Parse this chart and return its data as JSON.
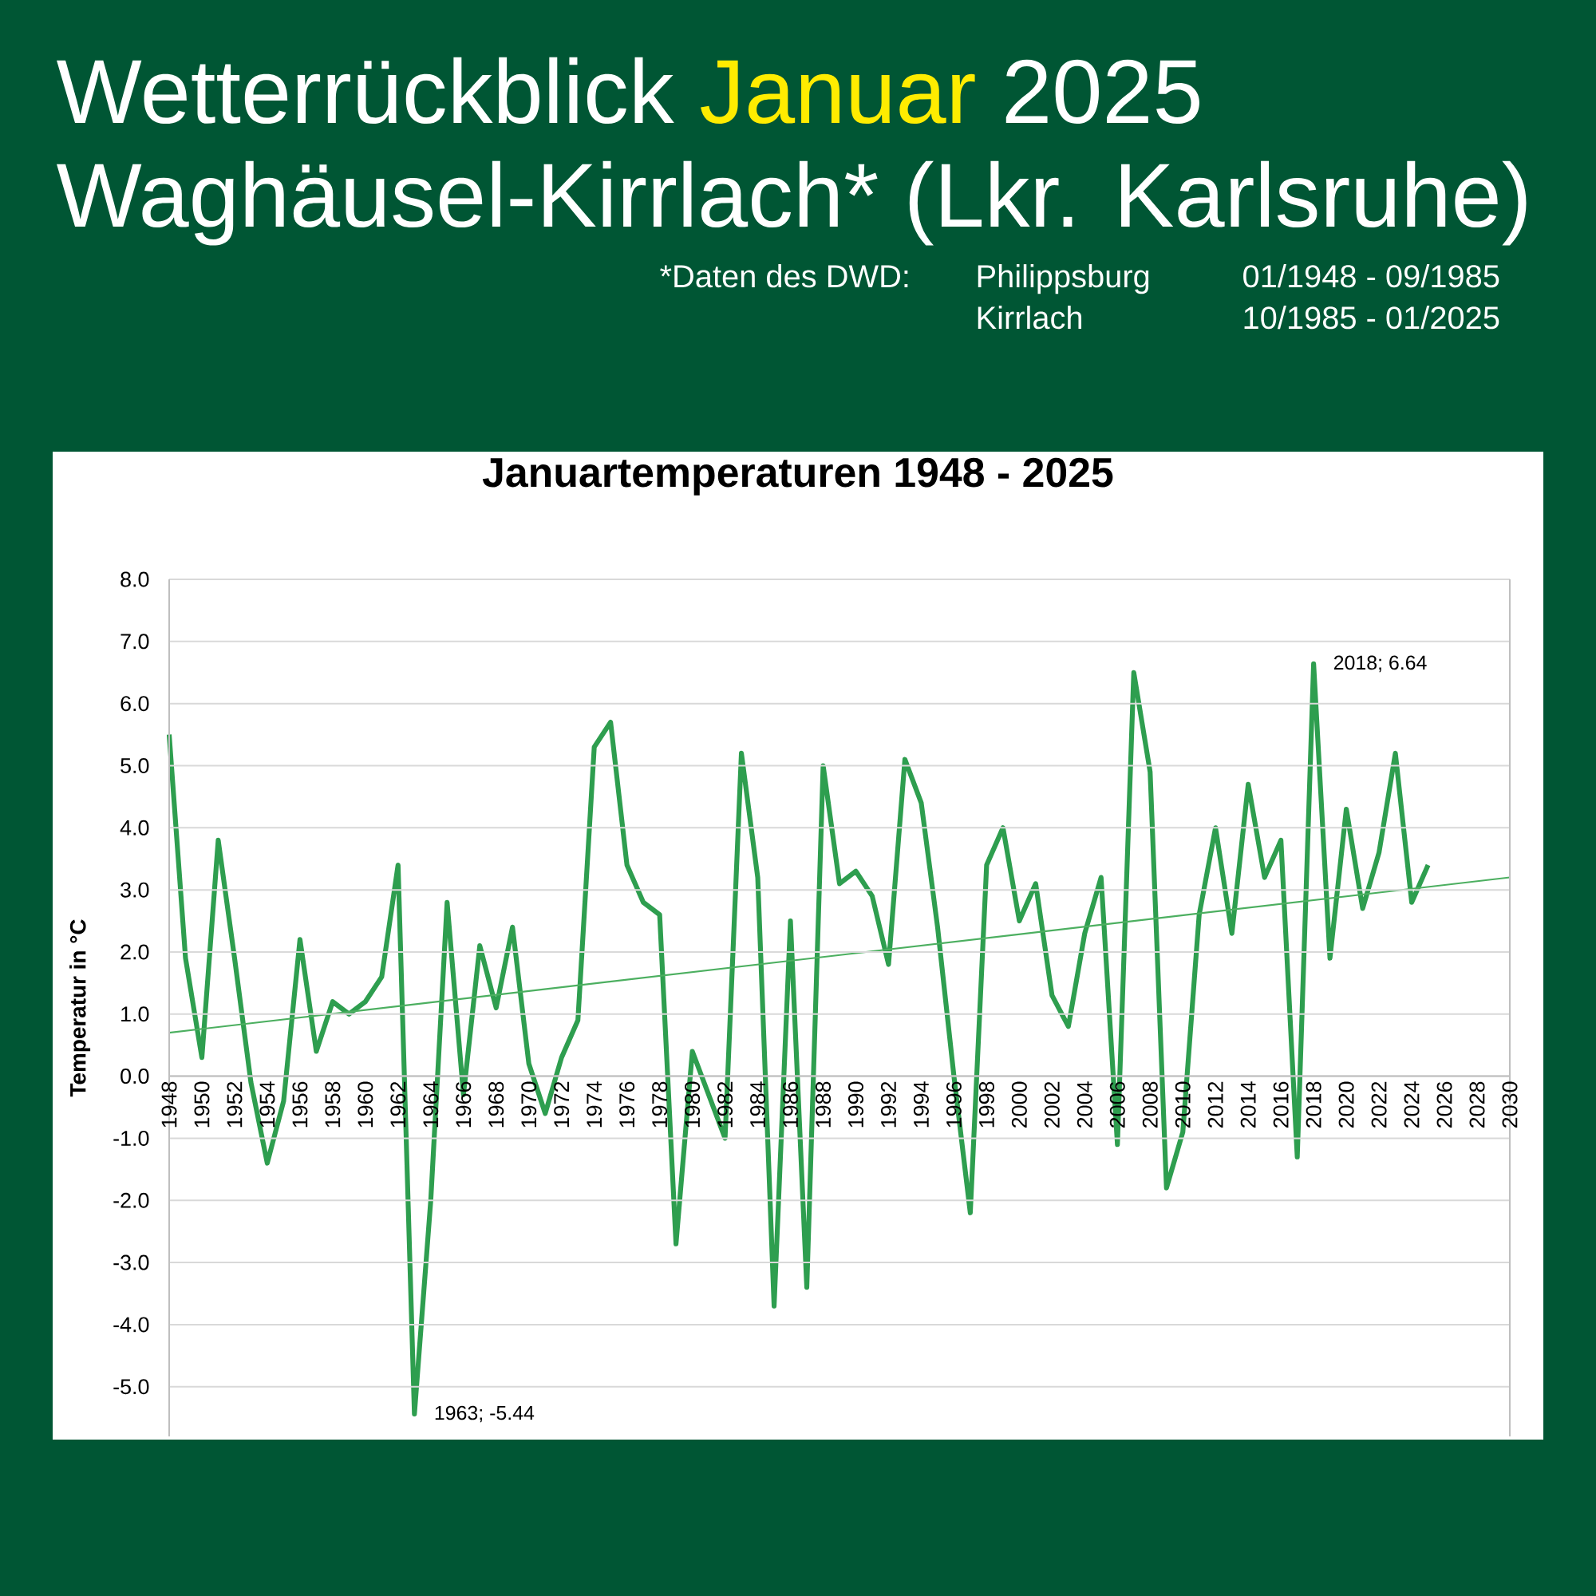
{
  "chart_data": {
    "type": "line",
    "title": "Januartemperaturen 1948 - 2025",
    "ylabel": "Temperatur in °C",
    "annotations": [
      "Wetterrückblick",
      "Januar",
      "2025",
      "Waghäusel-Kirrlach* (Lkr. Karlsruhe)",
      "*Daten des DWD:",
      "Philippsburg",
      "01/1948 - 09/1985",
      "Kirrlach",
      "10/1985 - 01/2025",
      {
        "text": "1963; -5.44",
        "x": 1963,
        "y": -5.44
      },
      {
        "text": "2018; 6.64",
        "x": 2018,
        "y": 6.64
      }
    ],
    "x": [
      1948,
      1949,
      1950,
      1951,
      1952,
      1953,
      1954,
      1955,
      1956,
      1957,
      1958,
      1959,
      1960,
      1961,
      1962,
      1963,
      1964,
      1965,
      1966,
      1967,
      1968,
      1969,
      1970,
      1971,
      1972,
      1973,
      1974,
      1975,
      1976,
      1977,
      1978,
      1979,
      1980,
      1981,
      1982,
      1983,
      1984,
      1985,
      1986,
      1987,
      1988,
      1989,
      1990,
      1991,
      1992,
      1993,
      1994,
      1995,
      1996,
      1997,
      1998,
      1999,
      2000,
      2001,
      2002,
      2003,
      2004,
      2005,
      2006,
      2007,
      2008,
      2009,
      2010,
      2011,
      2012,
      2013,
      2014,
      2015,
      2016,
      2017,
      2018,
      2019,
      2020,
      2021,
      2022,
      2023,
      2024,
      2025
    ],
    "series": [
      {
        "color": "#2e9e4f",
        "values": [
          5.5,
          1.9,
          0.3,
          3.8,
          1.9,
          -0.1,
          -1.4,
          -0.4,
          2.2,
          0.4,
          1.2,
          1.0,
          1.2,
          1.6,
          3.4,
          -5.44,
          -2.0,
          2.8,
          -0.3,
          2.1,
          1.1,
          2.4,
          0.2,
          -0.6,
          0.3,
          0.9,
          5.3,
          5.7,
          3.4,
          2.8,
          2.6,
          -2.7,
          0.4,
          -0.3,
          -1.0,
          5.2,
          3.2,
          -3.7,
          2.5,
          -3.4,
          5.0,
          3.1,
          3.3,
          2.9,
          1.8,
          5.1,
          4.4,
          2.4,
          0.0,
          -2.2,
          3.4,
          4.0,
          2.5,
          3.1,
          1.3,
          0.8,
          2.3,
          3.2,
          -1.1,
          6.5,
          4.9,
          -1.8,
          -0.9,
          2.6,
          4.0,
          2.3,
          4.7,
          3.2,
          3.8,
          -1.3,
          6.64,
          1.9,
          4.3,
          2.7,
          3.6,
          5.2,
          2.8,
          3.4
        ]
      },
      {
        "type": "line",
        "color": "#4caf60",
        "x": [
          1948,
          2030
        ],
        "values": [
          0.7,
          3.2
        ]
      }
    ],
    "xlim": [
      1948,
      2030
    ],
    "xticks": [
      1948,
      1950,
      1952,
      1954,
      1956,
      1958,
      1960,
      1962,
      1964,
      1966,
      1968,
      1970,
      1972,
      1974,
      1976,
      1978,
      1980,
      1982,
      1984,
      1986,
      1988,
      1990,
      1992,
      1994,
      1996,
      1998,
      2000,
      2002,
      2004,
      2006,
      2008,
      2010,
      2012,
      2014,
      2016,
      2018,
      2020,
      2022,
      2024,
      2026,
      2028,
      2030
    ],
    "ylim": [
      -5.8,
      8
    ],
    "yticks": [
      {
        "value": -5,
        "label": "-5.0"
      },
      {
        "value": -4,
        "label": "-4.0"
      },
      {
        "value": -3,
        "label": "-3.0"
      },
      {
        "value": -2,
        "label": "-2.0"
      },
      {
        "value": -1,
        "label": "-1.0"
      },
      {
        "value": 0,
        "label": "0.0"
      },
      {
        "value": 1,
        "label": "1.0"
      },
      {
        "value": 2,
        "label": "2.0"
      },
      {
        "value": 3,
        "label": "3.0"
      },
      {
        "value": 4,
        "label": "4.0"
      },
      {
        "value": 5,
        "label": "5.0"
      },
      {
        "value": 6,
        "label": "6.0"
      },
      {
        "value": 7,
        "label": "7.0"
      },
      {
        "value": 8,
        "label": "8.0"
      }
    ],
    "grid": "y"
  }
}
